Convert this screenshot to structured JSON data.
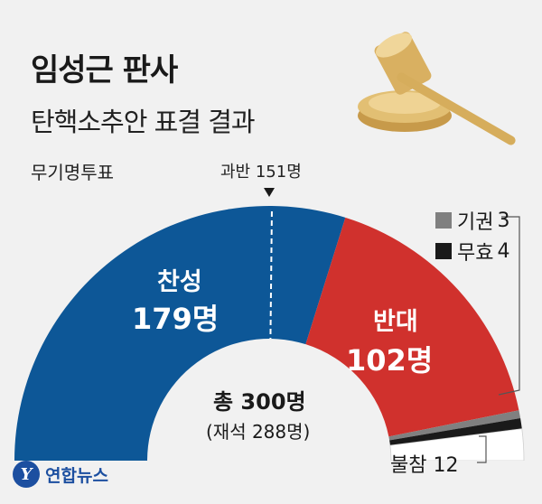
{
  "header": {
    "title": "임성근 판사",
    "subtitle": "탄핵소추안 표결 결과",
    "method": "무기명투표"
  },
  "majority_label": "과반 151명",
  "segments": [
    {
      "key": "yes",
      "label": "찬성",
      "value_text": "179명"
    },
    {
      "key": "no",
      "label": "반대",
      "value_text": "102명"
    }
  ],
  "legend": [
    {
      "key": "abstain",
      "label": "기권",
      "value_text": "3"
    },
    {
      "key": "invalid",
      "label": "무효",
      "value_text": "4"
    }
  ],
  "absent_label": "불참 12",
  "center": {
    "total": "총 300명",
    "present": "(재석 288명)"
  },
  "source": {
    "logo_text": "연합뉴스",
    "logo_mark": "Y"
  },
  "colors": {
    "yes": "#0d5797",
    "no": "#d0312d",
    "abstain": "#808080",
    "invalid": "#1a1a1a",
    "absent": "#ffffff"
  },
  "chart_data": {
    "type": "pie",
    "subtype": "semicircle",
    "title": "임성근 판사 탄핵소추안 표결 결과",
    "categories": [
      "찬성",
      "반대",
      "기권",
      "무효",
      "불참"
    ],
    "values": [
      179,
      102,
      3,
      4,
      12
    ],
    "total": 300,
    "present": 288,
    "majority_threshold": 151
  }
}
